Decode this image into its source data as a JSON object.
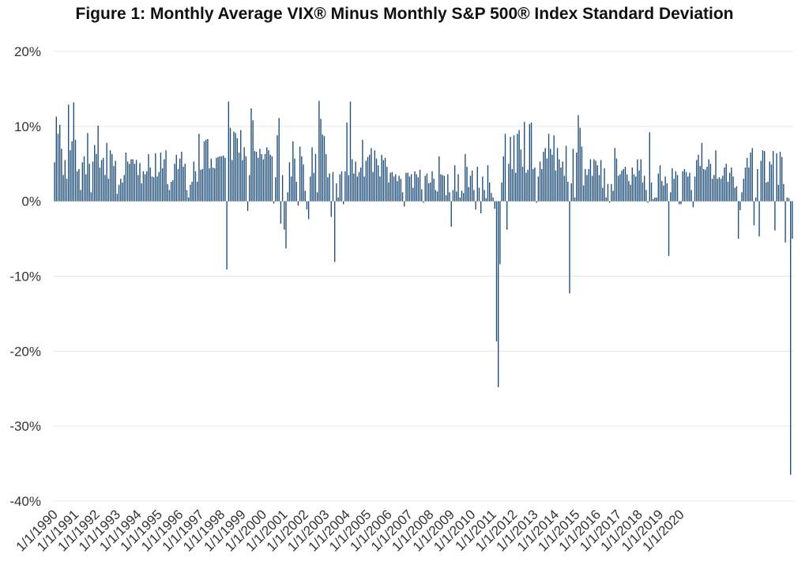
{
  "chart_data": {
    "type": "bar",
    "title": "Figure 1: Monthly Average VIX® Minus Monthly S&P 500® Index Standard Deviation",
    "xlabel": "",
    "ylabel": "",
    "ylim": [
      -40,
      20
    ],
    "y_unit": "%",
    "y_ticks": [
      -40,
      -30,
      -20,
      -10,
      0,
      10,
      20
    ],
    "y_tick_labels": [
      "-40%",
      "-30%",
      "-20%",
      "-10%",
      "0%",
      "10%",
      "20%"
    ],
    "x_tick_labels": [
      "1/1/1990",
      "1/1/1991",
      "1/1/1992",
      "1/1/1993",
      "1/1/1994",
      "1/1/1995",
      "1/1/1996",
      "1/1/1997",
      "1/1/1998",
      "1/1/1999",
      "1/1/2000",
      "1/1/2001",
      "1/1/2002",
      "1/1/2003",
      "1/1/2004",
      "1/1/2005",
      "1/1/2006",
      "1/1/2007",
      "1/1/2008",
      "1/1/2009",
      "1/1/2010",
      "1/1/2011",
      "1/1/2012",
      "1/1/2013",
      "1/1/2014",
      "1/1/2015",
      "1/1/2016",
      "1/1/2017",
      "1/1/2018",
      "1/1/2019",
      "1/1/2020"
    ],
    "grid": true,
    "legend": "none",
    "bar_color": "#1f4e79",
    "series": [
      {
        "start": "1990-01",
        "frequency": "monthly",
        "values": [
          5.2,
          11.3,
          9.0,
          10.2,
          7.0,
          3.5,
          5.5,
          3.0,
          12.9,
          6.8,
          8.0,
          13.2,
          8.2,
          4.0,
          4.3,
          1.5,
          5.2,
          6.0,
          3.6,
          9.1,
          5.0,
          1.2,
          5.3,
          7.5,
          6.3,
          10.1,
          4.5,
          5.5,
          5.8,
          3.5,
          7.8,
          3.0,
          6.8,
          6.3,
          4.7,
          5.4,
          1.0,
          2.2,
          3.0,
          2.5,
          3.5,
          6.5,
          5.3,
          5.0,
          5.6,
          5.6,
          5.0,
          5.5,
          3.5,
          5.1,
          2.4,
          4.0,
          3.6,
          4.0,
          6.3,
          4.5,
          3.3,
          3.2,
          6.4,
          3.3,
          3.9,
          6.5,
          4.4,
          5.6,
          6.8,
          2.3,
          1.5,
          2.6,
          2.8,
          5.0,
          6.2,
          4.3,
          5.7,
          6.6,
          4.6,
          5.0,
          1.5,
          0.5,
          2.2,
          2.6,
          5.3,
          4.0,
          2.6,
          9.0,
          4.2,
          4.3,
          8.0,
          8.2,
          8.3,
          4.4,
          5.7,
          4.5,
          4.4,
          5.8,
          5.9,
          6.0,
          6.0,
          6.1,
          5.8,
          -9.1,
          13.3,
          9.8,
          5.5,
          9.3,
          9.1,
          8.4,
          6.5,
          9.5,
          5.5,
          7.2,
          6.0,
          -1.3,
          3.5,
          12.4,
          10.8,
          6.7,
          6.6,
          5.8,
          7.0,
          6.3,
          5.6,
          6.3,
          7.2,
          6.8,
          6.2,
          6.0,
          -0.3,
          3.2,
          8.8,
          11.1,
          -3.0,
          3.5,
          -3.8,
          -6.3,
          1.2,
          5.2,
          3.3,
          8.0,
          5.7,
          2.6,
          -0.6,
          7.3,
          6.0,
          4.9,
          1.4,
          -1.1,
          -2.4,
          3.3,
          7.2,
          3.8,
          6.3,
          1.2,
          13.4,
          11.0,
          8.9,
          8.7,
          6.3,
          3.2,
          3.7,
          -2.1,
          3.9,
          -8.1,
          2.4,
          0.5,
          3.6,
          4.0,
          -0.4,
          4.0,
          10.5,
          3.5,
          13.3,
          5.6,
          3.7,
          5.3,
          3.3,
          3.9,
          4.5,
          8.2,
          3.3,
          5.4,
          5.9,
          6.2,
          7.1,
          3.9,
          6.8,
          5.7,
          4.8,
          3.3,
          6.2,
          5.5,
          5.8,
          4.6,
          2.5,
          3.8,
          3.9,
          3.3,
          3.6,
          2.7,
          3.4,
          3.0,
          1.2,
          -0.7,
          3.8,
          3.8,
          3.3,
          3.6,
          1.8,
          4.0,
          3.6,
          3.2,
          4.2,
          1.6,
          -0.2,
          3.4,
          3.7,
          2.4,
          2.5,
          4.0,
          3.0,
          1.5,
          1.3,
          6.0,
          3.6,
          3.5,
          3.4,
          0.8,
          3.6,
          1.2,
          -3.4,
          1.5,
          4.8,
          1.3,
          3.6,
          0.5,
          1.4,
          1.1,
          6.3,
          4.6,
          1.9,
          3.4,
          4.1,
          1.5,
          -1.1,
          4.6,
          1.8,
          -1.6,
          3.3,
          1.5,
          0.4,
          4.8,
          2.5,
          1.1,
          0.5,
          -1.0,
          -18.7,
          -24.8,
          -8.4,
          2.5,
          6.0,
          9.0,
          -3.8,
          5.0,
          8.6,
          4.3,
          8.8,
          3.8,
          9.0,
          9.5,
          6.9,
          4.6,
          10.6,
          3.8,
          4.2,
          10.3,
          10.5,
          4.3,
          4.5,
          -0.2,
          3.3,
          5.3,
          4.3,
          6.6,
          7.1,
          5.7,
          9.0,
          7.0,
          6.2,
          8.8,
          4.1,
          7.1,
          5.6,
          4.5,
          5.3,
          3.4,
          7.4,
          2.6,
          -12.3,
          2.4,
          7.0,
          0.5,
          6.5,
          11.5,
          9.8,
          7.3,
          2.1,
          4.3,
          3.5,
          4.3,
          5.6,
          3.4,
          5.6,
          5.4,
          4.8,
          3.5,
          5.5,
          1.8,
          4.4,
          0.5,
          2.3,
          -0.2,
          2.3,
          1.4,
          7.1,
          5.7,
          3.4,
          3.6,
          4.1,
          4.3,
          4.6,
          3.6,
          2.7,
          2.2,
          4.5,
          3.6,
          3.3,
          5.6,
          4.1,
          5.6,
          2.5,
          3.4,
          1.5,
          -0.2,
          9.2,
          2.5,
          0.3,
          0.5,
          0.5,
          3.7,
          4.8,
          2.7,
          2.1,
          3.3,
          2.4,
          -7.3,
          1.2,
          4.4,
          3.0,
          4.0,
          3.5,
          -0.4,
          -0.4,
          4.0,
          4.3,
          3.9,
          3.3,
          3.8,
          1.5,
          -0.8,
          3.3,
          5.5,
          6.2,
          4.7,
          7.8,
          4.3,
          4.2,
          4.6,
          5.6,
          5.0,
          3.0,
          3.5,
          6.8,
          3.0,
          3.2,
          3.0,
          3.4,
          4.5,
          5.0,
          2.6,
          3.8,
          4.5,
          3.3,
          1.8,
          2.0,
          -5.0,
          -1.2,
          1.2,
          3.0,
          4.5,
          5.8,
          4.5,
          6.5,
          7.1,
          -3.2,
          0.5,
          4.3,
          -4.7,
          5.4,
          6.8,
          6.7,
          2.5,
          2.6,
          5.3,
          4.9,
          6.7,
          -3.9,
          6.4,
          2.2,
          6.6,
          5.9,
          2.3,
          -5.5,
          0.5,
          0.4,
          -36.5,
          -5.0
        ]
      }
    ]
  }
}
